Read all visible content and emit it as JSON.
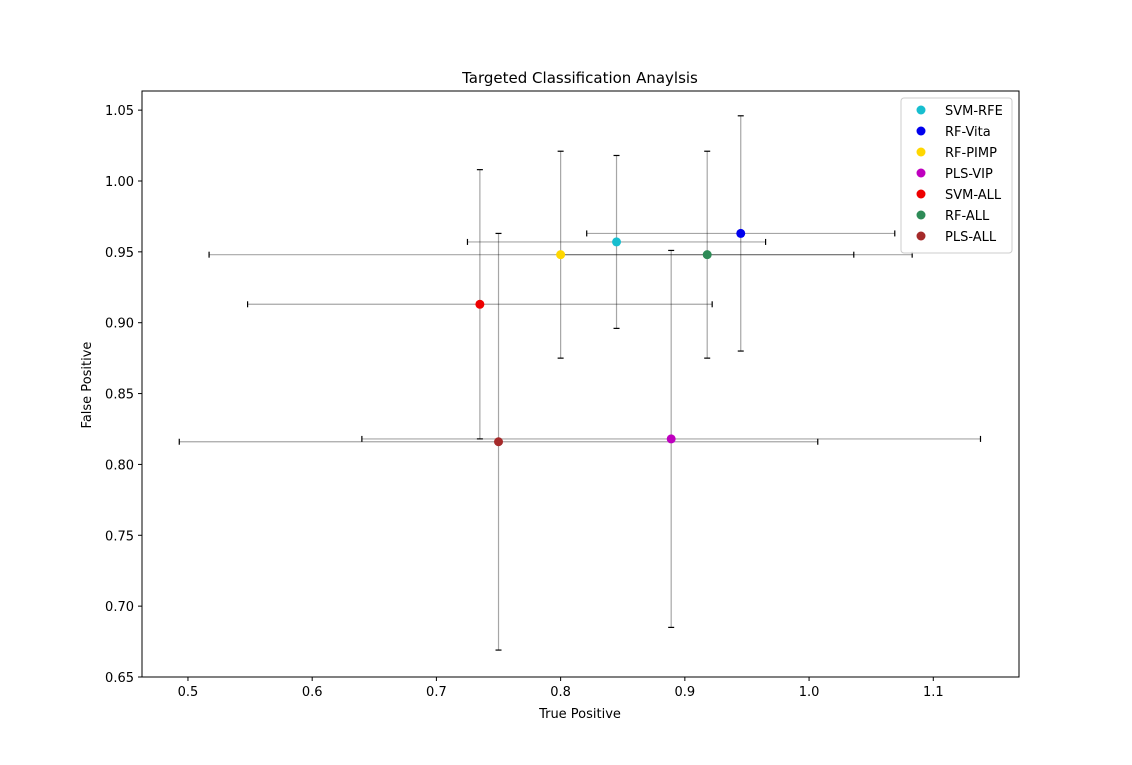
{
  "chart_data": {
    "type": "scatter",
    "title": "Targeted Classification Anaylsis",
    "xlabel": "True Positive",
    "ylabel": "False Positive",
    "xlim": [
      0.463,
      1.169
    ],
    "ylim": [
      0.65,
      1.0635
    ],
    "xticks": [
      0.5,
      0.6,
      0.7,
      0.8,
      0.9,
      1.0,
      1.1
    ],
    "xtick_labels": [
      "0.5",
      "0.6",
      "0.7",
      "0.8",
      "0.9",
      "1.0",
      "1.1"
    ],
    "yticks": [
      0.65,
      0.7,
      0.75,
      0.8,
      0.85,
      0.9,
      0.95,
      1.0,
      1.05
    ],
    "ytick_labels": [
      "0.65",
      "0.70",
      "0.75",
      "0.80",
      "0.85",
      "0.90",
      "0.95",
      "1.00",
      "1.05"
    ],
    "grid": false,
    "legend_position": "top-right",
    "series": [
      {
        "name": "SVM-RFE",
        "color": "#17becf",
        "x": 0.845,
        "y": 0.957,
        "xerr": 0.12,
        "yerr": 0.061
      },
      {
        "name": "RF-Vita",
        "color": "#0000ee",
        "x": 0.945,
        "y": 0.963,
        "xerr": 0.124,
        "yerr": 0.083
      },
      {
        "name": "RF-PIMP",
        "color": "#ffd700",
        "x": 0.8,
        "y": 0.948,
        "xerr": 0.283,
        "yerr": 0.073
      },
      {
        "name": "PLS-VIP",
        "color": "#bf00bf",
        "x": 0.889,
        "y": 0.818,
        "xerr": 0.249,
        "yerr": 0.133
      },
      {
        "name": "SVM-ALL",
        "color": "#ee0000",
        "x": 0.735,
        "y": 0.913,
        "xerr": 0.187,
        "yerr": 0.095
      },
      {
        "name": "RF-ALL",
        "color": "#2e8b57",
        "x": 0.918,
        "y": 0.948,
        "xerr": 0.118,
        "yerr": 0.073
      },
      {
        "name": "PLS-ALL",
        "color": "#a52a2a",
        "x": 0.75,
        "y": 0.816,
        "xerr": 0.257,
        "yerr": 0.147
      }
    ]
  }
}
